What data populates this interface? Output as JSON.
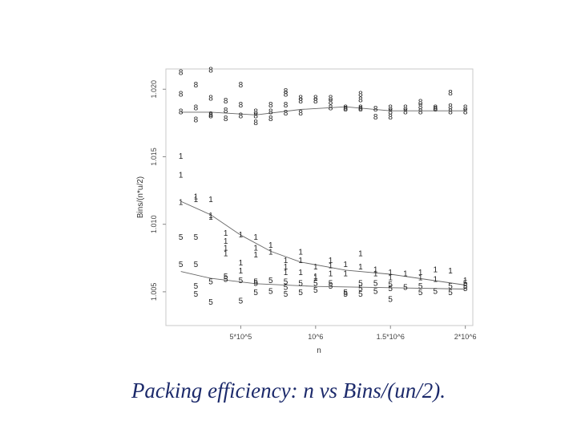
{
  "chart_data": {
    "type": "scatter",
    "title": "",
    "xlabel": "n",
    "ylabel": "Bins/(n*u/2)",
    "xlim": [
      0,
      2050000
    ],
    "ylim": [
      1.0025,
      1.0215
    ],
    "xticks": [
      {
        "value": 500000,
        "label": "5*10^5"
      },
      {
        "value": 1000000,
        "label": "10^6"
      },
      {
        "value": 1500000,
        "label": "1.5*10^6"
      },
      {
        "value": 2000000,
        "label": "2*10^6"
      }
    ],
    "yticks": [
      {
        "value": 1.005,
        "label": "1.005"
      },
      {
        "value": 1.01,
        "label": "1.010"
      },
      {
        "value": 1.015,
        "label": "1.015"
      },
      {
        "value": 1.02,
        "label": "1.020"
      }
    ],
    "series": [
      {
        "name": "8",
        "marker": "8",
        "points": [
          [
            100000,
            1.0212
          ],
          [
            100000,
            1.0196
          ],
          [
            100000,
            1.0183
          ],
          [
            200000,
            1.0203
          ],
          [
            200000,
            1.0177
          ],
          [
            200000,
            1.0186
          ],
          [
            300000,
            1.0214
          ],
          [
            300000,
            1.0193
          ],
          [
            300000,
            1.0181
          ],
          [
            300000,
            1.018
          ],
          [
            400000,
            1.0191
          ],
          [
            400000,
            1.0184
          ],
          [
            400000,
            1.0178
          ],
          [
            500000,
            1.0203
          ],
          [
            500000,
            1.0188
          ],
          [
            500000,
            1.018
          ],
          [
            600000,
            1.018
          ],
          [
            600000,
            1.0175
          ],
          [
            600000,
            1.0183
          ],
          [
            700000,
            1.0188
          ],
          [
            700000,
            1.0183
          ],
          [
            700000,
            1.0178
          ],
          [
            800000,
            1.0198
          ],
          [
            800000,
            1.0196
          ],
          [
            800000,
            1.0188
          ],
          [
            800000,
            1.0182
          ],
          [
            900000,
            1.0193
          ],
          [
            900000,
            1.0191
          ],
          [
            900000,
            1.0182
          ],
          [
            1000000,
            1.0193
          ],
          [
            1000000,
            1.0191
          ],
          [
            1100000,
            1.0193
          ],
          [
            1100000,
            1.019
          ],
          [
            1100000,
            1.0186
          ],
          [
            1200000,
            1.0186
          ],
          [
            1200000,
            1.0185
          ],
          [
            1300000,
            1.0196
          ],
          [
            1300000,
            1.0192
          ],
          [
            1300000,
            1.0186
          ],
          [
            1300000,
            1.0185
          ],
          [
            1400000,
            1.0185
          ],
          [
            1400000,
            1.0179
          ],
          [
            1500000,
            1.0186
          ],
          [
            1500000,
            1.0183
          ],
          [
            1500000,
            1.0179
          ],
          [
            1600000,
            1.0186
          ],
          [
            1600000,
            1.0183
          ],
          [
            1700000,
            1.019
          ],
          [
            1700000,
            1.0187
          ],
          [
            1700000,
            1.0183
          ],
          [
            1800000,
            1.0186
          ],
          [
            1800000,
            1.0185
          ],
          [
            1900000,
            1.0197
          ],
          [
            1900000,
            1.0187
          ],
          [
            1900000,
            1.0183
          ],
          [
            2000000,
            1.0186
          ],
          [
            2000000,
            1.0183
          ]
        ],
        "trend": [
          [
            100000,
            1.0183
          ],
          [
            300000,
            1.0183
          ],
          [
            600000,
            1.0181
          ],
          [
            900000,
            1.0185
          ],
          [
            1200000,
            1.0187
          ],
          [
            1500000,
            1.0184
          ],
          [
            2000000,
            1.0184
          ]
        ]
      },
      {
        "name": "1",
        "marker": "1",
        "points": [
          [
            100000,
            1.015
          ],
          [
            100000,
            1.0136
          ],
          [
            100000,
            1.0116
          ],
          [
            200000,
            1.012
          ],
          [
            200000,
            1.0118
          ],
          [
            300000,
            1.0118
          ],
          [
            300000,
            1.0106
          ],
          [
            300000,
            1.0105
          ],
          [
            400000,
            1.0093
          ],
          [
            400000,
            1.0087
          ],
          [
            400000,
            1.0082
          ],
          [
            400000,
            1.0078
          ],
          [
            500000,
            1.0092
          ],
          [
            500000,
            1.0071
          ],
          [
            500000,
            1.0065
          ],
          [
            600000,
            1.009
          ],
          [
            600000,
            1.0082
          ],
          [
            600000,
            1.0077
          ],
          [
            700000,
            1.0084
          ],
          [
            700000,
            1.0079
          ],
          [
            800000,
            1.0073
          ],
          [
            800000,
            1.0068
          ],
          [
            800000,
            1.0064
          ],
          [
            900000,
            1.0079
          ],
          [
            900000,
            1.0073
          ],
          [
            900000,
            1.0064
          ],
          [
            1000000,
            1.0068
          ],
          [
            1000000,
            1.0061
          ],
          [
            1000000,
            1.006
          ],
          [
            1100000,
            1.0073
          ],
          [
            1100000,
            1.0069
          ],
          [
            1100000,
            1.0063
          ],
          [
            1200000,
            1.007
          ],
          [
            1200000,
            1.0063
          ],
          [
            1300000,
            1.0078
          ],
          [
            1300000,
            1.0068
          ],
          [
            1400000,
            1.0066
          ],
          [
            1400000,
            1.0063
          ],
          [
            1500000,
            1.0064
          ],
          [
            1500000,
            1.006
          ],
          [
            1600000,
            1.0063
          ],
          [
            1700000,
            1.0064
          ],
          [
            1700000,
            1.006
          ],
          [
            1800000,
            1.0066
          ],
          [
            1800000,
            1.0059
          ],
          [
            1900000,
            1.0065
          ],
          [
            2000000,
            1.0058
          ]
        ],
        "trend": [
          [
            100000,
            1.0117
          ],
          [
            300000,
            1.0107
          ],
          [
            500000,
            1.0092
          ],
          [
            700000,
            1.008
          ],
          [
            900000,
            1.0072
          ],
          [
            1200000,
            1.0066
          ],
          [
            1500000,
            1.0063
          ],
          [
            2000000,
            1.0055
          ]
        ]
      },
      {
        "name": "5",
        "marker": "5",
        "points": [
          [
            100000,
            1.009
          ],
          [
            100000,
            1.007
          ],
          [
            200000,
            1.009
          ],
          [
            200000,
            1.007
          ],
          [
            200000,
            1.0054
          ],
          [
            200000,
            1.0048
          ],
          [
            300000,
            1.0057
          ],
          [
            300000,
            1.0042
          ],
          [
            400000,
            1.0061
          ],
          [
            400000,
            1.0059
          ],
          [
            500000,
            1.0058
          ],
          [
            500000,
            1.0043
          ],
          [
            600000,
            1.0057
          ],
          [
            600000,
            1.0056
          ],
          [
            600000,
            1.0049
          ],
          [
            700000,
            1.0058
          ],
          [
            700000,
            1.005
          ],
          [
            800000,
            1.0057
          ],
          [
            800000,
            1.0053
          ],
          [
            800000,
            1.0048
          ],
          [
            900000,
            1.0056
          ],
          [
            900000,
            1.0049
          ],
          [
            1000000,
            1.0056
          ],
          [
            1000000,
            1.0051
          ],
          [
            1100000,
            1.0056
          ],
          [
            1100000,
            1.0054
          ],
          [
            1200000,
            1.0049
          ],
          [
            1200000,
            1.0048
          ],
          [
            1300000,
            1.0056
          ],
          [
            1300000,
            1.0052
          ],
          [
            1300000,
            1.0048
          ],
          [
            1400000,
            1.0056
          ],
          [
            1400000,
            1.005
          ],
          [
            1500000,
            1.0055
          ],
          [
            1500000,
            1.0052
          ],
          [
            1500000,
            1.0044
          ],
          [
            1600000,
            1.0053
          ],
          [
            1700000,
            1.0054
          ],
          [
            1700000,
            1.0049
          ],
          [
            1800000,
            1.005
          ],
          [
            1900000,
            1.0054
          ],
          [
            1900000,
            1.0049
          ],
          [
            2000000,
            1.0056
          ],
          [
            2000000,
            1.0054
          ],
          [
            2000000,
            1.0052
          ]
        ],
        "trend": [
          [
            100000,
            1.0065
          ],
          [
            300000,
            1.006
          ],
          [
            600000,
            1.0056
          ],
          [
            1000000,
            1.0054
          ],
          [
            1500000,
            1.0053
          ],
          [
            2000000,
            1.0052
          ]
        ]
      }
    ]
  },
  "caption": "Packing efficiency: n vs Bins/(un/2)."
}
